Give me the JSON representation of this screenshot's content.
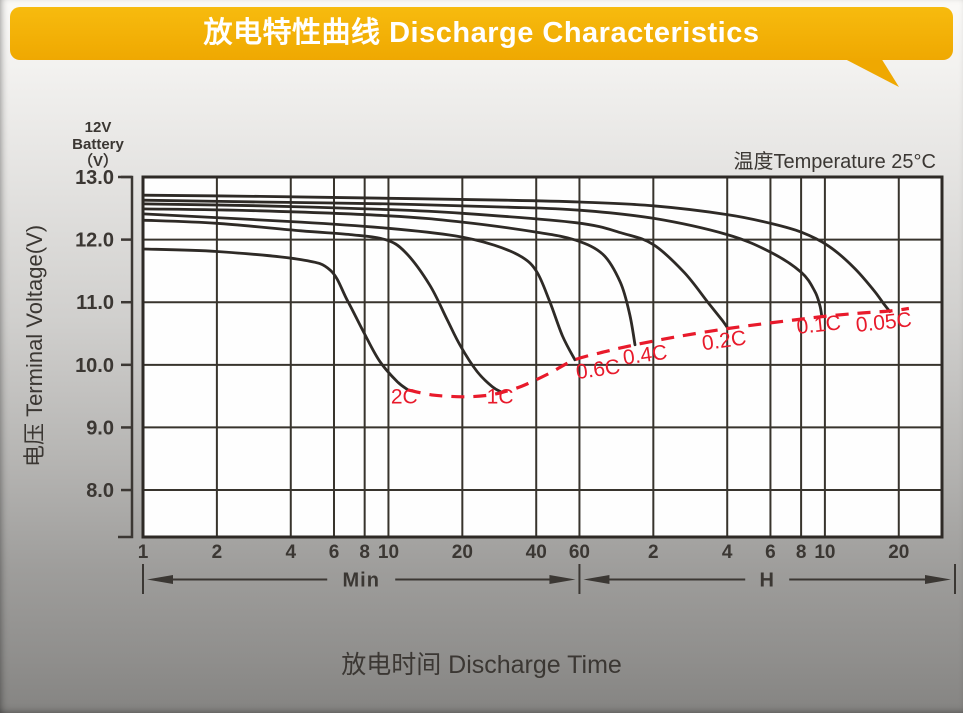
{
  "header": {
    "title": "放电特性曲线 Discharge Characteristics"
  },
  "chart": {
    "battery_label_lines": [
      "12V",
      "Battery",
      "（V）"
    ],
    "temperature_label": "温度Temperature 25°C",
    "y_axis_label": "电压 Terminal Voltage(V)",
    "x_axis_title": "放电时间 Discharge Time"
  },
  "chart_data": {
    "type": "line",
    "title": "放电特性曲线 Discharge Characteristics",
    "xlabel": "放电时间 Discharge Time",
    "ylabel": "电压 Terminal Voltage(V)",
    "x_scale": "log",
    "x_unit": "minutes",
    "x_max_minutes": 1800,
    "y_top": 13.0,
    "y_bottom": 7.25,
    "grid": true,
    "y_ticks": [
      {
        "v": 13.0,
        "label": "13.0"
      },
      {
        "v": 12.0,
        "label": "12.0"
      },
      {
        "v": 11.0,
        "label": "11.0"
      },
      {
        "v": 10.0,
        "label": "10.0"
      },
      {
        "v": 9.0,
        "label": "9.0"
      },
      {
        "v": 8.0,
        "label": "8.0"
      }
    ],
    "x_ticks": [
      {
        "t": 1,
        "label": "1"
      },
      {
        "t": 2,
        "label": "2"
      },
      {
        "t": 4,
        "label": "4"
      },
      {
        "t": 6,
        "label": "6"
      },
      {
        "t": 8,
        "label": "8"
      },
      {
        "t": 10,
        "label": "10"
      },
      {
        "t": 20,
        "label": "20"
      },
      {
        "t": 40,
        "label": "40"
      },
      {
        "t": 60,
        "label": "60"
      },
      {
        "t": 120,
        "label": "2"
      },
      {
        "t": 240,
        "label": "4"
      },
      {
        "t": 360,
        "label": "6"
      },
      {
        "t": 480,
        "label": "8"
      },
      {
        "t": 600,
        "label": "10"
      },
      {
        "t": 1200,
        "label": "20"
      }
    ],
    "range_arrows": [
      {
        "label": "Min",
        "from_t": 1,
        "to_t": 60
      },
      {
        "label": "H",
        "from_t": 60,
        "to_t": "end"
      }
    ],
    "series": [
      {
        "name": "0.05C",
        "points": [
          [
            1,
            12.71
          ],
          [
            3,
            12.69
          ],
          [
            10,
            12.66
          ],
          [
            30,
            12.63
          ],
          [
            60,
            12.6
          ],
          [
            120,
            12.54
          ],
          [
            240,
            12.4
          ],
          [
            360,
            12.26
          ],
          [
            480,
            12.12
          ],
          [
            620,
            11.9
          ],
          [
            785,
            11.56
          ],
          [
            945,
            11.2
          ],
          [
            1040,
            10.98
          ],
          [
            1104,
            10.85
          ]
        ]
      },
      {
        "name": "0.1C",
        "points": [
          [
            1,
            12.63
          ],
          [
            3,
            12.6
          ],
          [
            10,
            12.57
          ],
          [
            30,
            12.52
          ],
          [
            60,
            12.47
          ],
          [
            120,
            12.34
          ],
          [
            240,
            12.08
          ],
          [
            360,
            11.8
          ],
          [
            480,
            11.48
          ],
          [
            545,
            11.18
          ],
          [
            572,
            10.95
          ],
          [
            583,
            10.77
          ]
        ]
      },
      {
        "name": "0.2C",
        "points": [
          [
            1,
            12.57
          ],
          [
            3,
            12.54
          ],
          [
            10,
            12.48
          ],
          [
            20,
            12.42
          ],
          [
            58,
            12.27
          ],
          [
            90,
            12.1
          ],
          [
            120,
            11.92
          ],
          [
            160,
            11.48
          ],
          [
            200,
            11.0
          ],
          [
            228,
            10.72
          ],
          [
            242,
            10.58
          ]
        ]
      },
      {
        "name": "0.4C",
        "points": [
          [
            1,
            12.49
          ],
          [
            3,
            12.46
          ],
          [
            10,
            12.38
          ],
          [
            20,
            12.28
          ],
          [
            40,
            12.12
          ],
          [
            58,
            11.99
          ],
          [
            75,
            11.76
          ],
          [
            88,
            11.32
          ],
          [
            96,
            10.82
          ],
          [
            101,
            10.32
          ]
        ]
      },
      {
        "name": "0.6C",
        "points": [
          [
            1,
            12.41
          ],
          [
            4.4,
            12.28
          ],
          [
            10,
            12.18
          ],
          [
            18.7,
            12.06
          ],
          [
            27,
            11.91
          ],
          [
            35,
            11.72
          ],
          [
            40.3,
            11.48
          ],
          [
            45.5,
            11.0
          ],
          [
            51.2,
            10.46
          ],
          [
            57.5,
            10.08
          ]
        ]
      },
      {
        "name": "1C",
        "points": [
          [
            1,
            12.31
          ],
          [
            2,
            12.26
          ],
          [
            4.4,
            12.14
          ],
          [
            7,
            12.08
          ],
          [
            9.7,
            12.0
          ],
          [
            11.7,
            11.8
          ],
          [
            14.7,
            11.28
          ],
          [
            17.3,
            10.73
          ],
          [
            19.6,
            10.31
          ],
          [
            23,
            9.89
          ],
          [
            26.5,
            9.65
          ],
          [
            29,
            9.56
          ]
        ]
      },
      {
        "name": "2C",
        "points": [
          [
            1,
            11.85
          ],
          [
            2,
            11.81
          ],
          [
            4.4,
            11.68
          ],
          [
            5.8,
            11.51
          ],
          [
            6.8,
            11.03
          ],
          [
            8,
            10.49
          ],
          [
            9.2,
            10.06
          ],
          [
            10.8,
            9.74
          ],
          [
            12,
            9.6
          ]
        ]
      }
    ],
    "cutoff_line": {
      "name": "final-discharge-voltage",
      "points": [
        [
          12,
          9.6
        ],
        [
          15,
          9.52
        ],
        [
          20,
          9.49
        ],
        [
          25,
          9.51
        ],
        [
          29,
          9.56
        ],
        [
          35,
          9.66
        ],
        [
          45,
          9.86
        ],
        [
          57.5,
          10.08
        ],
        [
          78,
          10.22
        ],
        [
          101,
          10.32
        ],
        [
          150,
          10.45
        ],
        [
          242,
          10.58
        ],
        [
          360,
          10.67
        ],
        [
          480,
          10.73
        ],
        [
          583,
          10.77
        ],
        [
          800,
          10.82
        ],
        [
          1104,
          10.86
        ],
        [
          1320,
          10.9
        ]
      ],
      "labels": [
        {
          "text": "2C",
          "t": 11.6,
          "v": 9.38,
          "rot": 0
        },
        {
          "text": "1C",
          "t": 28.5,
          "v": 9.38,
          "rot": 0
        },
        {
          "text": "0.6C",
          "t": 72,
          "v": 9.82,
          "rot": -8
        },
        {
          "text": "0.4C",
          "t": 112,
          "v": 10.05,
          "rot": -8
        },
        {
          "text": "0.2C",
          "t": 235,
          "v": 10.28,
          "rot": -8
        },
        {
          "text": "0.1C",
          "t": 570,
          "v": 10.53,
          "rot": -6
        },
        {
          "text": "0.05C",
          "t": 1050,
          "v": 10.57,
          "rot": -6
        }
      ]
    },
    "colors": {
      "curve": "#2e2a26",
      "grid": "#38342d",
      "frame": "#2e2a26",
      "cutoff": "#e81a2b",
      "ink": "#3b3733",
      "banner": "#f2ae01",
      "plot_bg": "#fefefe"
    }
  }
}
